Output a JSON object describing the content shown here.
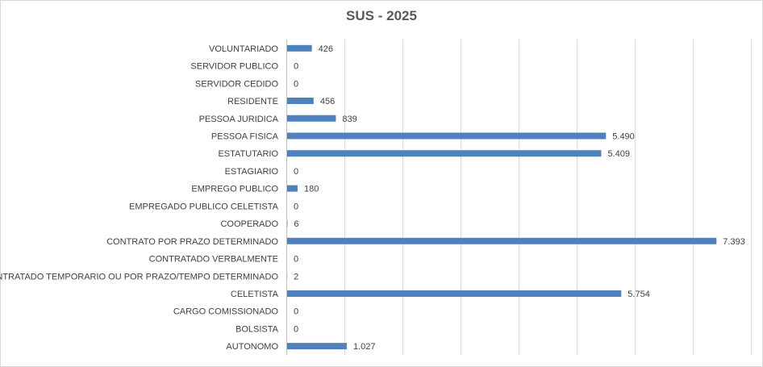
{
  "chart_data": {
    "type": "bar",
    "orientation": "horizontal",
    "title": "SUS - 2025",
    "xlim": [
      0,
      8000
    ],
    "grid": true,
    "legend": "none",
    "bar_color": "#4f81bd",
    "categories": [
      "VOLUNTARIADO",
      "SERVIDOR PUBLICO",
      "SERVIDOR CEDIDO",
      "RESIDENTE",
      "PESSOA JURIDICA",
      "PESSOA FISICA",
      "ESTATUTARIO",
      "ESTAGIARIO",
      "EMPREGO PUBLICO",
      "EMPREGADO PUBLICO CELETISTA",
      "COOPERADO",
      "CONTRATO POR PRAZO DETERMINADO",
      "CONTRATADO VERBALMENTE",
      "CONTRATADO TEMPORARIO OU POR PRAZO/TEMPO DETERMINADO",
      "CELETISTA",
      "CARGO COMISSIONADO",
      "BOLSISTA",
      "AUTONOMO"
    ],
    "values": [
      426,
      0,
      0,
      456,
      839,
      5490,
      5409,
      0,
      180,
      0,
      6,
      7393,
      0,
      2,
      5754,
      0,
      0,
      1027
    ],
    "value_labels": [
      "426",
      "0",
      "0",
      "456",
      "839",
      "5.490",
      "5.409",
      "0",
      "180",
      "0",
      "6",
      "7.393",
      "0",
      "2",
      "5.754",
      "0",
      "0",
      "1.027"
    ]
  }
}
